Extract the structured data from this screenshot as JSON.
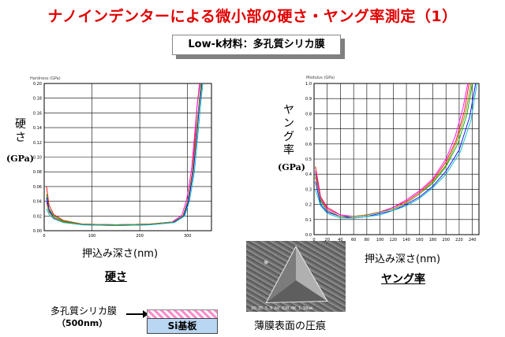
{
  "title": "ナノインデンターによる微小部の硬さ・ヤング率測定（1）",
  "subtitle": "Low-k材料：多孔質シリカ膜",
  "colors": {
    "title": "#e00000",
    "series": [
      "#ff0000",
      "#00aa00",
      "#0000ff",
      "#ff00ff",
      "#00bbbb",
      "#888800",
      "#ff8800",
      "#000000"
    ]
  },
  "hardness": {
    "y_label": "硬さ",
    "unit": "(GPa)",
    "small_ylabel": "Hardness (GPa)",
    "x_label": "押込み深さ(nm)",
    "caption": "硬さ"
  },
  "modulus": {
    "y_label": "ヤング率",
    "unit": "(GPa)",
    "small_ylabel": "Modulus (GPa)",
    "x_label": "押込み深さ(nm)",
    "caption": "ヤング率"
  },
  "sample": {
    "film_label": "多孔質シリカ膜",
    "film_thickness": "（500nm）",
    "substrate": "Si基板"
  },
  "sem": {
    "caption": "薄膜表面の圧痕",
    "info": "10:35 5.0 kV X20.0K 1.50um",
    "icon": "triangular-indent"
  },
  "chart_data": [
    {
      "type": "line",
      "xlabel": "押込み深さ(nm)",
      "ylabel": "Hardness (GPa)",
      "xlim": [
        0,
        350
      ],
      "ylim": [
        0,
        0.2
      ],
      "xticks": [
        0,
        100,
        200,
        300
      ],
      "yticks": [
        0,
        0.02,
        0.04,
        0.06,
        0.08,
        0.1,
        0.12,
        0.14,
        0.16,
        0.18,
        0.2
      ],
      "grid": true,
      "series": [
        {
          "x": [
            5,
            10,
            20,
            40,
            80,
            150,
            220,
            270,
            290,
            300,
            310,
            315,
            320,
            325
          ],
          "y": [
            0.06,
            0.035,
            0.022,
            0.014,
            0.009,
            0.008,
            0.009,
            0.012,
            0.02,
            0.04,
            0.08,
            0.12,
            0.17,
            0.2
          ]
        },
        {
          "x": [
            5,
            10,
            20,
            40,
            80,
            150,
            220,
            270,
            290,
            300,
            310,
            316,
            322,
            328
          ],
          "y": [
            0.05,
            0.03,
            0.02,
            0.013,
            0.009,
            0.008,
            0.009,
            0.011,
            0.019,
            0.038,
            0.075,
            0.115,
            0.16,
            0.2
          ]
        },
        {
          "x": [
            5,
            10,
            20,
            40,
            80,
            150,
            220,
            270,
            292,
            302,
            312,
            318,
            324,
            330
          ],
          "y": [
            0.045,
            0.028,
            0.018,
            0.012,
            0.008,
            0.007,
            0.008,
            0.011,
            0.02,
            0.04,
            0.08,
            0.12,
            0.165,
            0.2
          ]
        },
        {
          "x": [
            5,
            10,
            20,
            40,
            80,
            150,
            220,
            268,
            288,
            298,
            308,
            314,
            320,
            326
          ],
          "y": [
            0.04,
            0.026,
            0.017,
            0.012,
            0.009,
            0.008,
            0.009,
            0.012,
            0.021,
            0.042,
            0.082,
            0.125,
            0.17,
            0.2
          ]
        },
        {
          "x": [
            5,
            10,
            20,
            40,
            80,
            150,
            220,
            272,
            294,
            304,
            314,
            320,
            326,
            332
          ],
          "y": [
            0.03,
            0.022,
            0.016,
            0.011,
            0.008,
            0.007,
            0.008,
            0.011,
            0.02,
            0.04,
            0.078,
            0.118,
            0.162,
            0.2
          ]
        },
        {
          "x": [
            5,
            10,
            20,
            40,
            80,
            150,
            220,
            270,
            290,
            300,
            310,
            317,
            323,
            329
          ],
          "y": [
            0.038,
            0.025,
            0.018,
            0.012,
            0.009,
            0.008,
            0.009,
            0.012,
            0.02,
            0.039,
            0.077,
            0.12,
            0.165,
            0.2
          ]
        }
      ]
    },
    {
      "type": "line",
      "xlabel": "押込み深さ(nm)",
      "ylabel": "Modulus (GPa)",
      "xlim": [
        0,
        250
      ],
      "ylim": [
        0,
        1.0
      ],
      "xticks": [
        0,
        20,
        40,
        60,
        80,
        100,
        120,
        140,
        160,
        180,
        200,
        220,
        240
      ],
      "yticks": [
        0,
        0.1,
        0.2,
        0.3,
        0.4,
        0.5,
        0.6,
        0.7,
        0.8,
        0.9,
        1.0
      ],
      "grid": true,
      "series": [
        {
          "x": [
            2,
            10,
            20,
            40,
            60,
            80,
            100,
            120,
            140,
            160,
            180,
            200,
            215,
            228,
            235
          ],
          "y": [
            0.45,
            0.25,
            0.18,
            0.13,
            0.12,
            0.13,
            0.15,
            0.18,
            0.22,
            0.28,
            0.36,
            0.48,
            0.62,
            0.82,
            1.0
          ]
        },
        {
          "x": [
            2,
            10,
            20,
            40,
            60,
            80,
            100,
            120,
            140,
            160,
            180,
            200,
            218,
            232,
            240
          ],
          "y": [
            0.4,
            0.22,
            0.16,
            0.12,
            0.12,
            0.13,
            0.15,
            0.17,
            0.21,
            0.27,
            0.34,
            0.45,
            0.6,
            0.8,
            1.0
          ]
        },
        {
          "x": [
            2,
            10,
            20,
            40,
            60,
            80,
            100,
            120,
            140,
            160,
            180,
            200,
            220,
            236,
            245
          ],
          "y": [
            0.35,
            0.2,
            0.15,
            0.12,
            0.11,
            0.12,
            0.14,
            0.16,
            0.2,
            0.25,
            0.32,
            0.42,
            0.56,
            0.78,
            1.0
          ]
        },
        {
          "x": [
            2,
            10,
            20,
            40,
            60,
            80,
            100,
            120,
            140,
            160,
            180,
            200,
            214,
            226,
            233
          ],
          "y": [
            0.42,
            0.24,
            0.17,
            0.13,
            0.12,
            0.13,
            0.15,
            0.18,
            0.23,
            0.29,
            0.37,
            0.5,
            0.65,
            0.84,
            1.0
          ]
        },
        {
          "x": [
            2,
            10,
            20,
            40,
            60,
            80,
            100,
            120,
            140,
            160,
            180,
            200,
            222,
            238,
            247
          ],
          "y": [
            0.3,
            0.19,
            0.14,
            0.11,
            0.11,
            0.12,
            0.13,
            0.16,
            0.19,
            0.24,
            0.31,
            0.4,
            0.55,
            0.76,
            1.0
          ]
        },
        {
          "x": [
            2,
            10,
            20,
            40,
            60,
            80,
            100,
            120,
            140,
            160,
            180,
            200,
            216,
            230,
            238
          ],
          "y": [
            0.38,
            0.23,
            0.16,
            0.12,
            0.12,
            0.13,
            0.15,
            0.17,
            0.21,
            0.27,
            0.35,
            0.46,
            0.61,
            0.81,
            1.0
          ]
        }
      ]
    }
  ]
}
